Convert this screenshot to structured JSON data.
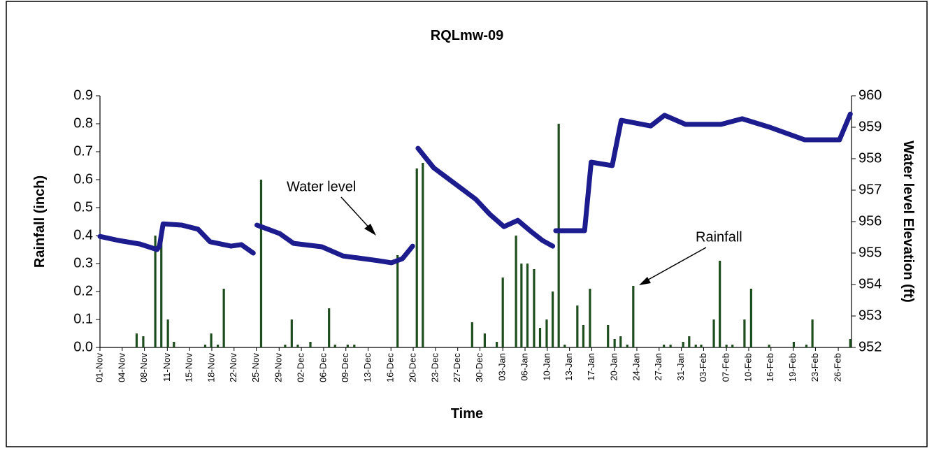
{
  "chart_data": {
    "type": "bar",
    "title": "RQLmw-09",
    "x_label": "Time",
    "y_label": "Rainfall (inch)",
    "y2_label": "Water level Elevation (ft)",
    "annotations": [
      "Water level",
      "Rainfall"
    ],
    "xlim": [
      0,
      125
    ],
    "xticks": [
      {
        "value": 0,
        "label": "01-Nov"
      },
      {
        "value": 3.7,
        "label": "04-Nov"
      },
      {
        "value": 7.4,
        "label": "08-Nov"
      },
      {
        "value": 11.2,
        "label": "11-Nov"
      },
      {
        "value": 14.9,
        "label": "15-Nov"
      },
      {
        "value": 18.6,
        "label": "18-Nov"
      },
      {
        "value": 22.3,
        "label": "22-Nov"
      },
      {
        "value": 26.0,
        "label": "25-Nov"
      },
      {
        "value": 29.8,
        "label": "29-Nov"
      },
      {
        "value": 33.5,
        "label": "02-Dec"
      },
      {
        "value": 37.2,
        "label": "06-Dec"
      },
      {
        "value": 40.9,
        "label": "09-Dec"
      },
      {
        "value": 44.6,
        "label": "13-Dec"
      },
      {
        "value": 48.4,
        "label": "16-Dec"
      },
      {
        "value": 52.1,
        "label": "20-Dec"
      },
      {
        "value": 55.8,
        "label": "23-Dec"
      },
      {
        "value": 59.5,
        "label": "27-Dec"
      },
      {
        "value": 63.2,
        "label": "30-Dec"
      },
      {
        "value": 67.0,
        "label": "03-Jan"
      },
      {
        "value": 70.7,
        "label": "06-Jan"
      },
      {
        "value": 74.4,
        "label": "10-Jan"
      },
      {
        "value": 78.1,
        "label": "13-Jan"
      },
      {
        "value": 81.8,
        "label": "17-Jan"
      },
      {
        "value": 85.6,
        "label": "20-Jan"
      },
      {
        "value": 89.3,
        "label": "24-Jan"
      },
      {
        "value": 93.0,
        "label": "27-Jan"
      },
      {
        "value": 96.7,
        "label": "31-Jan"
      },
      {
        "value": 100.4,
        "label": "03-Feb"
      },
      {
        "value": 104.2,
        "label": "07-Feb"
      },
      {
        "value": 107.9,
        "label": "10-Feb"
      },
      {
        "value": 111.6,
        "label": "16-Feb"
      },
      {
        "value": 115.3,
        "label": "19-Feb"
      },
      {
        "value": 119.0,
        "label": "23-Feb"
      },
      {
        "value": 122.8,
        "label": "26-Feb"
      }
    ],
    "ylim": [
      0,
      0.9
    ],
    "yticks": [
      {
        "value": 0,
        "label": "0.0"
      },
      0.1,
      0.2,
      0.3,
      0.4,
      0.5,
      0.6,
      0.7,
      0.8,
      0.9
    ],
    "y2lim": [
      952,
      960
    ],
    "y2ticks": [
      952,
      953,
      954,
      955,
      956,
      957,
      958,
      959,
      960
    ],
    "series": [
      {
        "name": "Rainfall",
        "type": "bar",
        "color": "#1e4d1e",
        "x": [
          6.1,
          7.2,
          9.2,
          10.2,
          11.3,
          12.3,
          17.5,
          18.5,
          19.6,
          20.6,
          26.8,
          30.8,
          31.9,
          32.9,
          35.0,
          38.1,
          39.1,
          41.2,
          42.3,
          49.5,
          52.7,
          53.7,
          61.9,
          64.0,
          66.0,
          67.0,
          69.2,
          70.1,
          71.1,
          72.2,
          73.2,
          74.3,
          75.3,
          76.3,
          77.3,
          79.4,
          80.4,
          81.5,
          84.5,
          85.6,
          86.6,
          87.7,
          88.7,
          93.8,
          94.9,
          97.0,
          98.0,
          99.1,
          100.0,
          102.1,
          103.1,
          104.2,
          105.2,
          107.2,
          108.3,
          111.3,
          115.4,
          117.5,
          118.5,
          124.8
        ],
        "values": [
          0.05,
          0.04,
          0.4,
          0.4,
          0.1,
          0.02,
          0.01,
          0.05,
          0.01,
          0.21,
          0.6,
          0.01,
          0.1,
          0.01,
          0.02,
          0.14,
          0.01,
          0.01,
          0.01,
          0.33,
          0.64,
          0.66,
          0.09,
          0.05,
          0.02,
          0.25,
          0.4,
          0.3,
          0.3,
          0.28,
          0.07,
          0.1,
          0.2,
          0.8,
          0.01,
          0.15,
          0.08,
          0.21,
          0.08,
          0.03,
          0.04,
          0.01,
          0.22,
          0.01,
          0.01,
          0.02,
          0.04,
          0.01,
          0.01,
          0.1,
          0.31,
          0.01,
          0.01,
          0.1,
          0.21,
          0.01,
          0.02,
          0.01,
          0.1,
          0.03
        ]
      },
      {
        "name": "Water level",
        "type": "line",
        "axis": "y2",
        "color": "#1c1c8f",
        "x": [
          0,
          3.1,
          6.6,
          9.5,
          9.9,
          10.5,
          13.6,
          16.3,
          18.3,
          21.8,
          23.5,
          25.5,
          25.8,
          26.1,
          29.9,
          32.2,
          36.9,
          40.4,
          46.2,
          48.5,
          50.3,
          52.0,
          52.4,
          52.9,
          55.5,
          60.2,
          62.5,
          64.8,
          67.2,
          69.5,
          71.8,
          73.6,
          75.3,
          75.5,
          75.8,
          80.6,
          81.7,
          85.2,
          86.7,
          91.6,
          93.9,
          97.4,
          103.3,
          106.8,
          111.4,
          117.2,
          123.0,
          124.8
        ],
        "values": [
          955.53,
          955.4,
          955.29,
          955.11,
          955.22,
          955.93,
          955.89,
          955.76,
          955.36,
          955.22,
          955.27,
          955.0,
          null,
          955.89,
          955.62,
          955.31,
          955.2,
          954.91,
          954.76,
          954.69,
          954.82,
          955.22,
          null,
          958.33,
          957.71,
          957.04,
          956.71,
          956.24,
          955.84,
          956.04,
          955.67,
          955.4,
          955.22,
          null,
          955.71,
          955.71,
          957.89,
          957.78,
          959.22,
          959.04,
          959.38,
          959.09,
          959.09,
          959.27,
          959.0,
          958.6,
          958.6,
          959.42
        ]
      }
    ]
  }
}
